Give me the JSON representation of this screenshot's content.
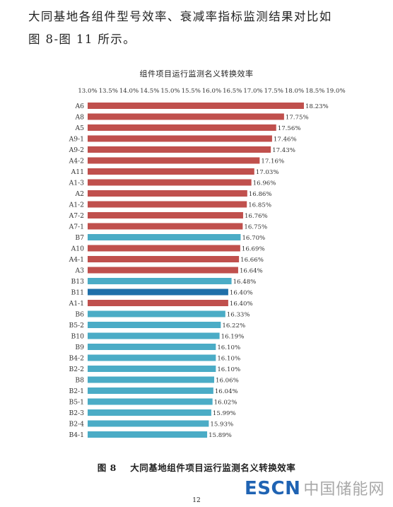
{
  "intro": {
    "line1": "大同基地各组件型号效率、衰减率指标监测结果对比如",
    "line2": "图 8-图 11 所示。"
  },
  "chart_data": {
    "type": "bar",
    "orientation": "horizontal",
    "title": "组件项目运行监测名义转换效率",
    "xlabel": "",
    "ylabel": "",
    "xlim": [
      13.0,
      19.0
    ],
    "x_ticks": [
      "13.0%",
      "13.5%",
      "14.0%",
      "14.5%",
      "15.0%",
      "15.5%",
      "16.0%",
      "16.5%",
      "17.0%",
      "17.5%",
      "18.0%",
      "18.5%",
      "19.0%"
    ],
    "axis_position": "top",
    "grid": false,
    "legend": "none",
    "colors": {
      "A": "#c0504d",
      "B": "#4bacc6",
      "highlight": "#1f6fa9"
    },
    "categories": [
      "A6",
      "A8",
      "A5",
      "A9-1",
      "A9-2",
      "A4-2",
      "A11",
      "A1-3",
      "A2",
      "A1-2",
      "A7-2",
      "A7-1",
      "B7",
      "A10",
      "A4-1",
      "A3",
      "B13",
      "B11",
      "A1-1",
      "B6",
      "B5-2",
      "B10",
      "B9",
      "B4-2",
      "B2-2",
      "B8",
      "B2-1",
      "B5-1",
      "B2-3",
      "B2-4",
      "B4-1"
    ],
    "values": [
      18.23,
      17.75,
      17.56,
      17.46,
      17.43,
      17.16,
      17.03,
      16.96,
      16.86,
      16.85,
      16.76,
      16.75,
      16.7,
      16.69,
      16.66,
      16.64,
      16.48,
      16.4,
      16.4,
      16.33,
      16.22,
      16.19,
      16.1,
      16.1,
      16.1,
      16.06,
      16.04,
      16.02,
      15.99,
      15.93,
      15.89
    ],
    "value_labels": [
      "18.23%",
      "17.75%",
      "17.56%",
      "17.46%",
      "17.43%",
      "17.16%",
      "17.03%",
      "16.96%",
      "16.86%",
      "16.85%",
      "16.76%",
      "16.75%",
      "16.70%",
      "16.69%",
      "16.66%",
      "16.64%",
      "16.48%",
      "16.40%",
      "16.40%",
      "16.33%",
      "16.22%",
      "16.19%",
      "16.10%",
      "16.10%",
      "16.10%",
      "16.06%",
      "16.04%",
      "16.02%",
      "15.99%",
      "15.93%",
      "15.89%"
    ],
    "highlighted": [
      "B11"
    ]
  },
  "caption": {
    "label": "图 8",
    "text": "大同基地组件项目运行监测名义转换效率"
  },
  "page_number": "12",
  "watermark": {
    "brand": "ESCN",
    "site": "中国储能网"
  }
}
